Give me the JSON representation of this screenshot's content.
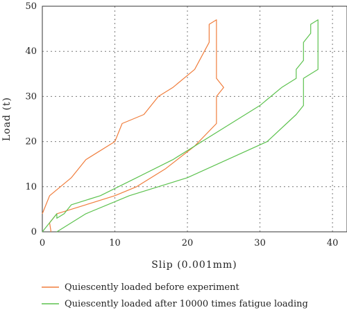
{
  "chart_data": {
    "type": "line",
    "title": "",
    "xlabel": "Slip (0.001mm)",
    "ylabel": "Load (t)",
    "xlim": [
      0,
      42
    ],
    "ylim": [
      0,
      50
    ],
    "x_ticks": [
      "0",
      "10",
      "20",
      "30",
      "40"
    ],
    "y_ticks": [
      "0",
      "10",
      "20",
      "30",
      "40",
      "50"
    ],
    "x_tick_values": [
      0,
      10,
      20,
      30,
      40
    ],
    "y_tick_values": [
      0,
      10,
      20,
      30,
      40,
      50
    ],
    "grid": true,
    "legend_position": "bottom",
    "series": [
      {
        "name": "Quiescently loaded before experiment",
        "color": "#f07d3c",
        "points": [
          [
            1.2,
            0
          ],
          [
            1.0,
            2
          ],
          [
            2,
            4
          ],
          [
            6,
            6
          ],
          [
            10,
            8
          ],
          [
            13,
            10
          ],
          [
            17,
            14
          ],
          [
            21,
            19
          ],
          [
            24,
            24
          ],
          [
            24,
            30
          ],
          [
            25,
            32
          ],
          [
            24,
            34
          ],
          [
            24,
            47
          ],
          [
            23,
            46
          ],
          [
            23,
            42
          ],
          [
            21,
            36
          ],
          [
            18,
            32
          ],
          [
            16,
            30
          ],
          [
            14,
            26
          ],
          [
            11,
            24
          ],
          [
            10,
            20
          ],
          [
            6,
            16
          ],
          [
            4,
            12
          ],
          [
            1,
            8
          ],
          [
            0,
            4
          ]
        ]
      },
      {
        "name": "Quiescently loaded after 10000 times fatigue loading",
        "color": "#5cc24e",
        "points": [
          [
            2,
            0
          ],
          [
            6,
            4
          ],
          [
            12,
            8
          ],
          [
            20,
            12
          ],
          [
            31,
            20
          ],
          [
            35,
            26
          ],
          [
            36,
            28
          ],
          [
            36,
            34
          ],
          [
            38,
            36
          ],
          [
            38,
            47
          ],
          [
            37,
            46
          ],
          [
            37,
            44
          ],
          [
            36,
            42
          ],
          [
            36,
            38
          ],
          [
            35,
            36
          ],
          [
            35,
            34
          ],
          [
            33,
            32
          ],
          [
            30,
            28
          ],
          [
            25,
            23
          ],
          [
            18,
            16
          ],
          [
            13,
            12
          ],
          [
            8,
            8
          ],
          [
            4,
            6
          ],
          [
            3,
            4
          ],
          [
            2,
            3
          ],
          [
            2,
            4
          ],
          [
            0,
            0
          ]
        ]
      }
    ]
  }
}
